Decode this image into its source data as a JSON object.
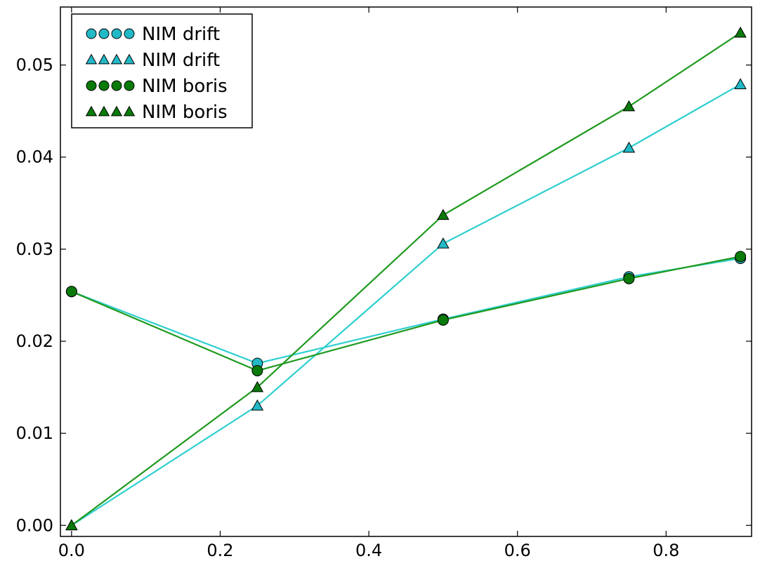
{
  "chart_data": {
    "type": "line",
    "title": "",
    "xlabel": "",
    "ylabel": "",
    "xlim": [
      -0.015,
      0.915
    ],
    "ylim": [
      -0.0012,
      0.0563
    ],
    "x_ticks": [
      0.0,
      0.2,
      0.4,
      0.6,
      0.8
    ],
    "x_tick_labels": [
      "0.0",
      "0.2",
      "0.4",
      "0.6",
      "0.8"
    ],
    "y_ticks": [
      0.0,
      0.01,
      0.02,
      0.03,
      0.04,
      0.05
    ],
    "y_tick_labels": [
      "0.00",
      "0.01",
      "0.02",
      "0.03",
      "0.04",
      "0.05"
    ],
    "grid": false,
    "legend_position": "top-left",
    "x": [
      0.0,
      0.25,
      0.5,
      0.75,
      0.9
    ],
    "series": [
      {
        "name": "NIM drift",
        "marker": "circle",
        "color": "#2fcfcf",
        "marker_fill": "#22b8c6",
        "values": [
          0.0254,
          0.0176,
          0.0224,
          0.027,
          0.029
        ]
      },
      {
        "name": "NIM drift",
        "marker": "triangle",
        "color": "#2fcfcf",
        "marker_fill": "#22b8c6",
        "values": [
          0.0,
          0.013,
          0.0306,
          0.041,
          0.0479
        ]
      },
      {
        "name": "NIM boris",
        "marker": "circle",
        "color": "#1f9a1f",
        "marker_fill": "#0a7a0a",
        "values": [
          0.0254,
          0.0168,
          0.0223,
          0.0268,
          0.0292
        ]
      },
      {
        "name": "NIM boris",
        "marker": "triangle",
        "color": "#1f9a1f",
        "marker_fill": "#0a7a0a",
        "values": [
          0.0,
          0.015,
          0.0337,
          0.0455,
          0.0535
        ]
      }
    ]
  }
}
